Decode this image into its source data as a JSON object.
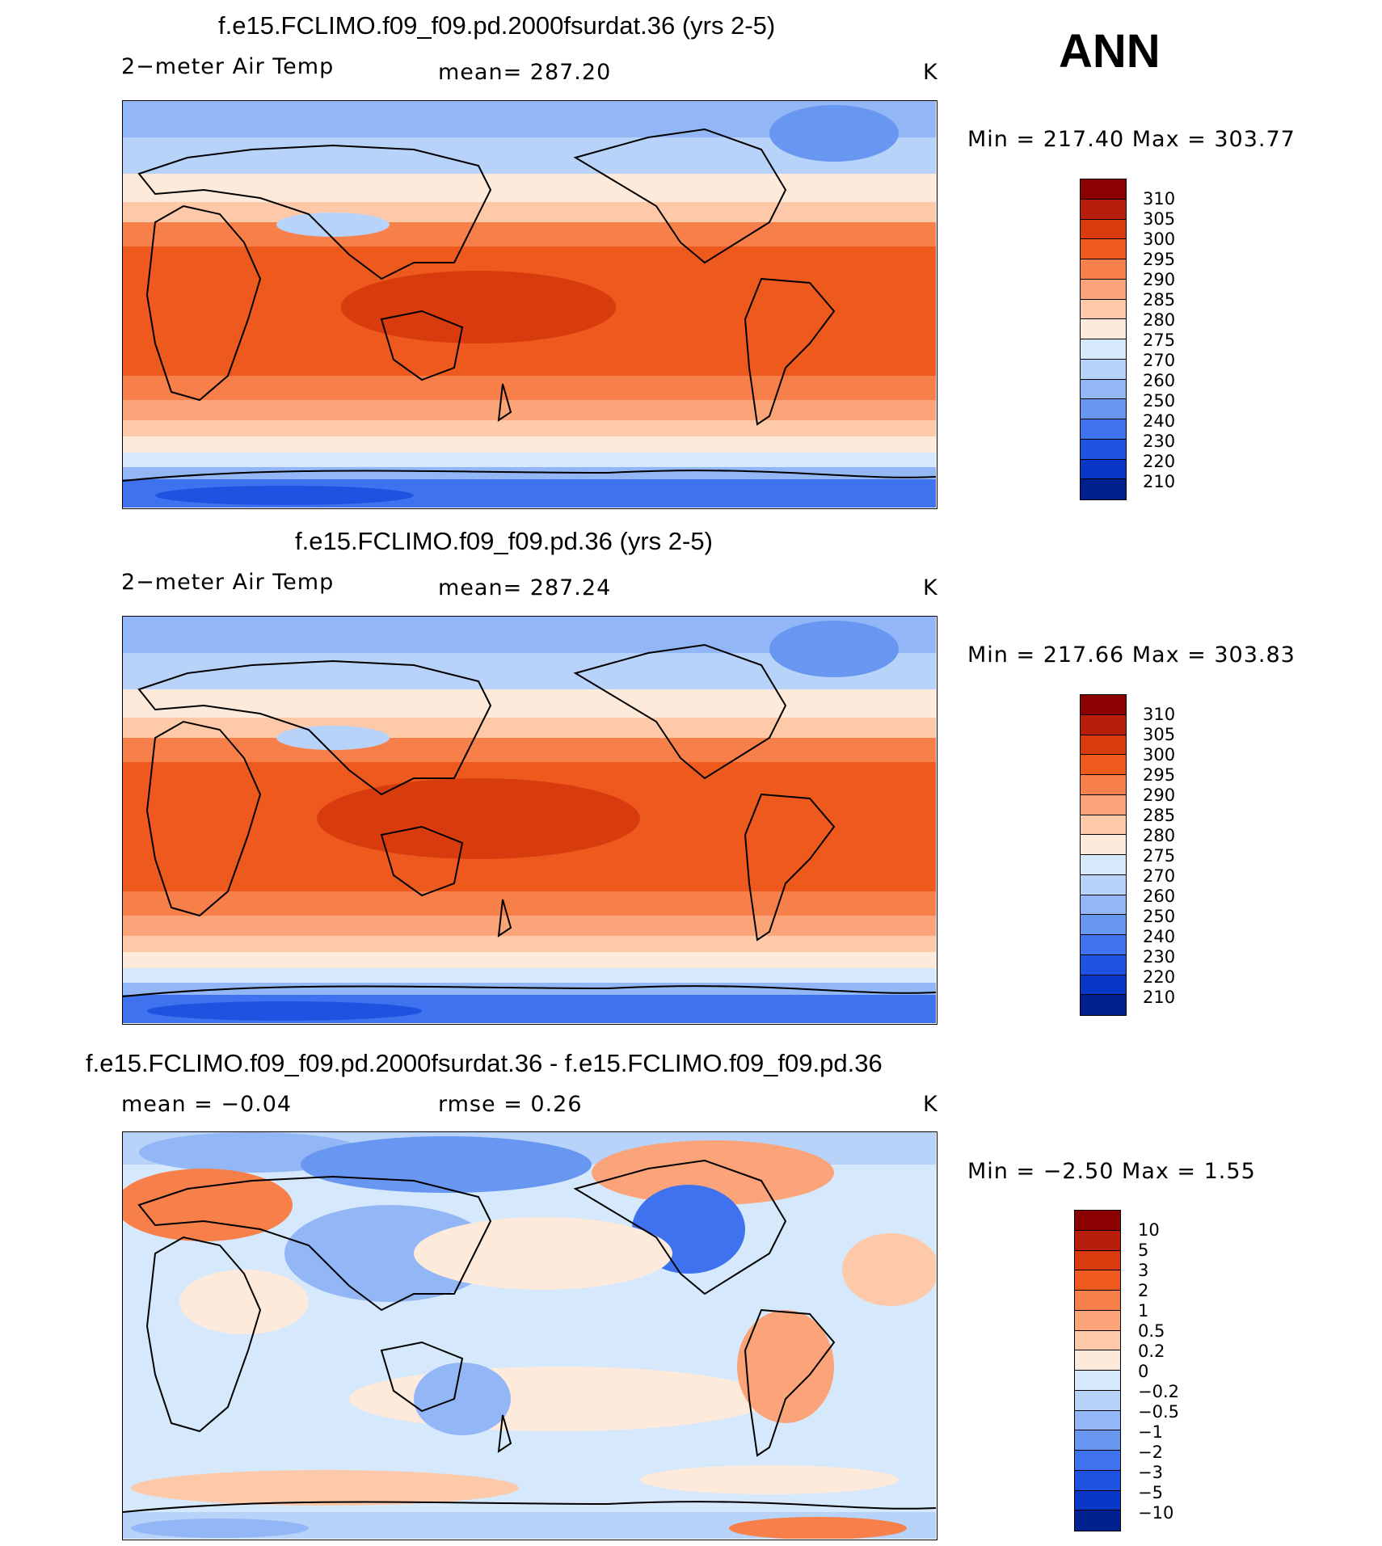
{
  "season": "ANN",
  "panels": [
    {
      "title": "f.e15.FCLIMO.f09_f09.pd.2000fsurdat.36 (yrs 2-5)",
      "variable": "2−meter Air Temp",
      "stat": "mean=  287.20",
      "units": "K",
      "minmax": "Min  =  217.40  Max  =  303.77",
      "kind": "abs",
      "labels": [
        "310",
        "305",
        "300",
        "295",
        "290",
        "285",
        "280",
        "275",
        "270",
        "260",
        "250",
        "240",
        "230",
        "220",
        "210"
      ],
      "colors": [
        "#8b0000",
        "#b81e0c",
        "#d83b0d",
        "#ee5a1e",
        "#f77f4a",
        "#fba379",
        "#fdc9a8",
        "#fdeadb",
        "#d6e8fb",
        "#b8d3fa",
        "#93b7f6",
        "#6897f1",
        "#3f72ee",
        "#1e53e2",
        "#0a38c6",
        "#00208f"
      ]
    },
    {
      "title": "f.e15.FCLIMO.f09_f09.pd.36 (yrs 2-5)",
      "variable": "2−meter Air Temp",
      "stat": "mean=  287.24",
      "units": "K",
      "minmax": "Min  =  217.66  Max  =  303.83",
      "kind": "abs",
      "labels": [
        "310",
        "305",
        "300",
        "295",
        "290",
        "285",
        "280",
        "275",
        "270",
        "260",
        "250",
        "240",
        "230",
        "220",
        "210"
      ],
      "colors": [
        "#8b0000",
        "#b81e0c",
        "#d83b0d",
        "#ee5a1e",
        "#f77f4a",
        "#fba379",
        "#fdc9a8",
        "#fdeadb",
        "#d6e8fb",
        "#b8d3fa",
        "#93b7f6",
        "#6897f1",
        "#3f72ee",
        "#1e53e2",
        "#0a38c6",
        "#00208f"
      ]
    },
    {
      "title": "f.e15.FCLIMO.f09_f09.pd.2000fsurdat.36 - f.e15.FCLIMO.f09_f09.pd.36",
      "variable": "mean =   −0.04",
      "stat": "rmse =    0.26",
      "units": "K",
      "minmax": "Min  =   −2.50  Max  =    1.55",
      "kind": "diff",
      "labels": [
        "10",
        "5",
        "3",
        "2",
        "1",
        "0.5",
        "0.2",
        "0",
        "−0.2",
        "−0.5",
        "−1",
        "−2",
        "−3",
        "−5",
        "−10"
      ],
      "colors": [
        "#8b0000",
        "#b81e0c",
        "#d83b0d",
        "#ee5a1e",
        "#f77f4a",
        "#fba379",
        "#fdc9a8",
        "#fdeadb",
        "#d6e8fb",
        "#b8d3fa",
        "#93b7f6",
        "#6897f1",
        "#3f72ee",
        "#1e53e2",
        "#0a38c6",
        "#00208f"
      ]
    }
  ]
}
